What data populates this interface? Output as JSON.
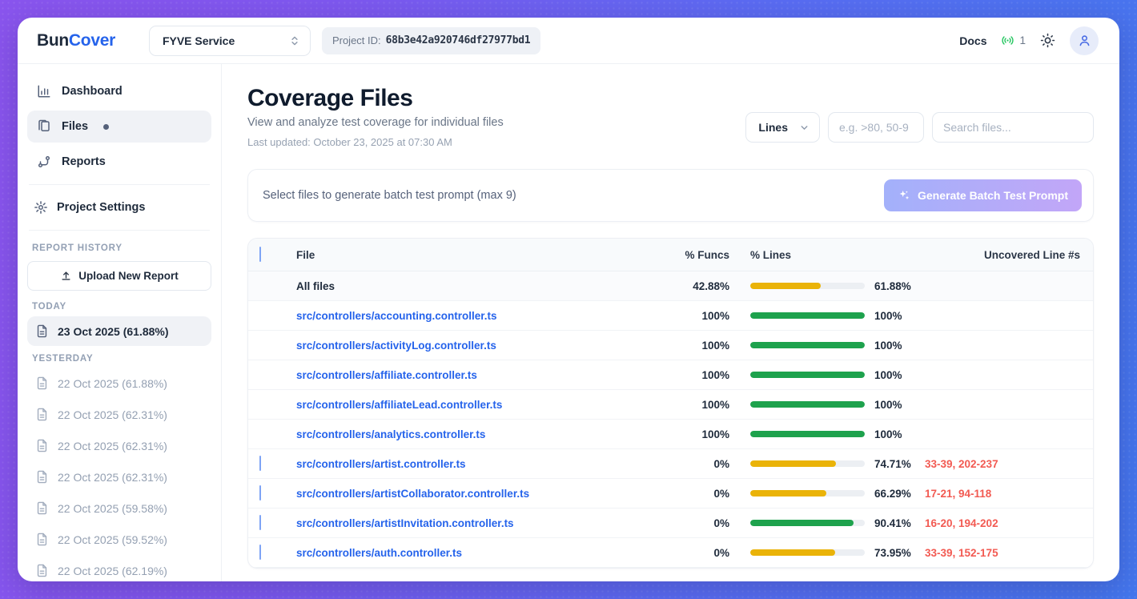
{
  "header": {
    "brand_part1": "Bun",
    "brand_part2": "Cover",
    "service_selector": "FYVE Service",
    "project_id_label": "Project ID:",
    "project_id": "68b3e42a920746df27977bd1",
    "docs_label": "Docs",
    "live_count": "1"
  },
  "sidebar": {
    "nav": [
      {
        "label": "Dashboard"
      },
      {
        "label": "Files"
      },
      {
        "label": "Reports"
      }
    ],
    "settings_label": "Project Settings",
    "history_label": "REPORT HISTORY",
    "upload_button": "Upload New Report",
    "today_label": "TODAY",
    "today_item": "23 Oct 2025 (61.88%)",
    "yesterday_label": "YESTERDAY",
    "yesterday_items": [
      "22 Oct 2025 (61.88%)",
      "22 Oct 2025 (62.31%)",
      "22 Oct 2025 (62.31%)",
      "22 Oct 2025 (62.31%)",
      "22 Oct 2025 (59.58%)",
      "22 Oct 2025 (59.52%)",
      "22 Oct 2025 (62.19%)"
    ]
  },
  "main": {
    "title": "Coverage Files",
    "subtitle": "View and analyze test coverage for individual files",
    "last_updated": "Last updated: October 23, 2025 at 07:30 AM",
    "filters": {
      "metric_selected": "Lines",
      "range_placeholder": "e.g. >80, 50-9",
      "search_placeholder": "Search files..."
    },
    "batch": {
      "hint": "Select files to generate batch test prompt (max 9)",
      "button_label": "Generate Batch Test Prompt"
    },
    "table": {
      "columns": {
        "file": "File",
        "funcs": "% Funcs",
        "lines": "% Lines",
        "uncovered": "Uncovered Line #s"
      },
      "rows": [
        {
          "file": "All files",
          "is_link": false,
          "checkbox": false,
          "funcs": "42.88%",
          "lines_pct": 61.88,
          "lines_label": "61.88%",
          "bar_color": "amber",
          "uncovered": ""
        },
        {
          "file": "src/controllers/accounting.controller.ts",
          "is_link": true,
          "checkbox": false,
          "funcs": "100%",
          "lines_pct": 100,
          "lines_label": "100%",
          "bar_color": "green",
          "uncovered": ""
        },
        {
          "file": "src/controllers/activityLog.controller.ts",
          "is_link": true,
          "checkbox": false,
          "funcs": "100%",
          "lines_pct": 100,
          "lines_label": "100%",
          "bar_color": "green",
          "uncovered": ""
        },
        {
          "file": "src/controllers/affiliate.controller.ts",
          "is_link": true,
          "checkbox": false,
          "funcs": "100%",
          "lines_pct": 100,
          "lines_label": "100%",
          "bar_color": "green",
          "uncovered": ""
        },
        {
          "file": "src/controllers/affiliateLead.controller.ts",
          "is_link": true,
          "checkbox": false,
          "funcs": "100%",
          "lines_pct": 100,
          "lines_label": "100%",
          "bar_color": "green",
          "uncovered": ""
        },
        {
          "file": "src/controllers/analytics.controller.ts",
          "is_link": true,
          "checkbox": false,
          "funcs": "100%",
          "lines_pct": 100,
          "lines_label": "100%",
          "bar_color": "green",
          "uncovered": ""
        },
        {
          "file": "src/controllers/artist.controller.ts",
          "is_link": true,
          "checkbox": true,
          "funcs": "0%",
          "lines_pct": 74.71,
          "lines_label": "74.71%",
          "bar_color": "amber",
          "uncovered": "33-39, 202-237"
        },
        {
          "file": "src/controllers/artistCollaborator.controller.ts",
          "is_link": true,
          "checkbox": true,
          "funcs": "0%",
          "lines_pct": 66.29,
          "lines_label": "66.29%",
          "bar_color": "amber",
          "uncovered": "17-21, 94-118"
        },
        {
          "file": "src/controllers/artistInvitation.controller.ts",
          "is_link": true,
          "checkbox": true,
          "funcs": "0%",
          "lines_pct": 90.41,
          "lines_label": "90.41%",
          "bar_color": "green",
          "uncovered": "16-20, 194-202"
        },
        {
          "file": "src/controllers/auth.controller.ts",
          "is_link": true,
          "checkbox": true,
          "funcs": "0%",
          "lines_pct": 73.95,
          "lines_label": "73.95%",
          "bar_color": "amber",
          "uncovered": "33-39, 152-175"
        }
      ]
    }
  },
  "colors": {
    "amber": "#eab308",
    "green": "#1ea24d",
    "link_blue": "#2563eb",
    "uncovered_red": "#f25a52",
    "frame_purple": "#8a55ee",
    "frame_blue": "#4477ee",
    "live_green": "#22c55e"
  }
}
